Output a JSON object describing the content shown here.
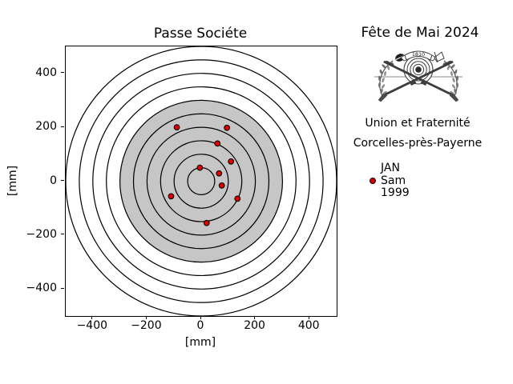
{
  "chart": {
    "title": "Passe Sociéte",
    "xlabel": "[mm]",
    "ylabel": "[mm]",
    "x_ticks": [
      -400,
      -200,
      0,
      200,
      400
    ],
    "y_ticks": [
      -400,
      -200,
      0,
      200,
      400
    ]
  },
  "chart_data": {
    "type": "scatter",
    "title": "Passe Sociéte",
    "xlabel": "[mm]",
    "ylabel": "[mm]",
    "xlim": [
      -500,
      500
    ],
    "ylim": [
      -500,
      500
    ],
    "grid": false,
    "target_rings_mm": [
      50,
      100,
      150,
      200,
      250,
      300,
      350,
      400,
      450,
      500
    ],
    "gray_disc_radius_mm": 300,
    "series": [
      {
        "name": "JAN Sam 1999",
        "marker": "circle",
        "color": "#dd0000",
        "edge_color": "#000000",
        "points": [
          [
            -90,
            200
          ],
          [
            95,
            198
          ],
          [
            60,
            140
          ],
          [
            110,
            73
          ],
          [
            -5,
            50
          ],
          [
            66,
            29
          ],
          [
            76,
            -16
          ],
          [
            -111,
            -56
          ],
          [
            134,
            -65
          ],
          [
            20,
            -155
          ]
        ]
      }
    ]
  },
  "side_panel": {
    "title": "Fête de Mai 2024",
    "emblem": {
      "banner_text": "1810"
    },
    "line1": "Union et Fraternité",
    "line2": "Corcelles-près-Payerne",
    "legend": {
      "marker_color": "#cc0000",
      "lines": [
        "JAN",
        "Sam",
        "1999"
      ]
    }
  },
  "colors": {
    "background": "#ffffff",
    "ring_stroke": "#000000",
    "target_gray": "#c6c6c6",
    "shot_fill": "#dd0000",
    "shot_edge": "#000000"
  }
}
